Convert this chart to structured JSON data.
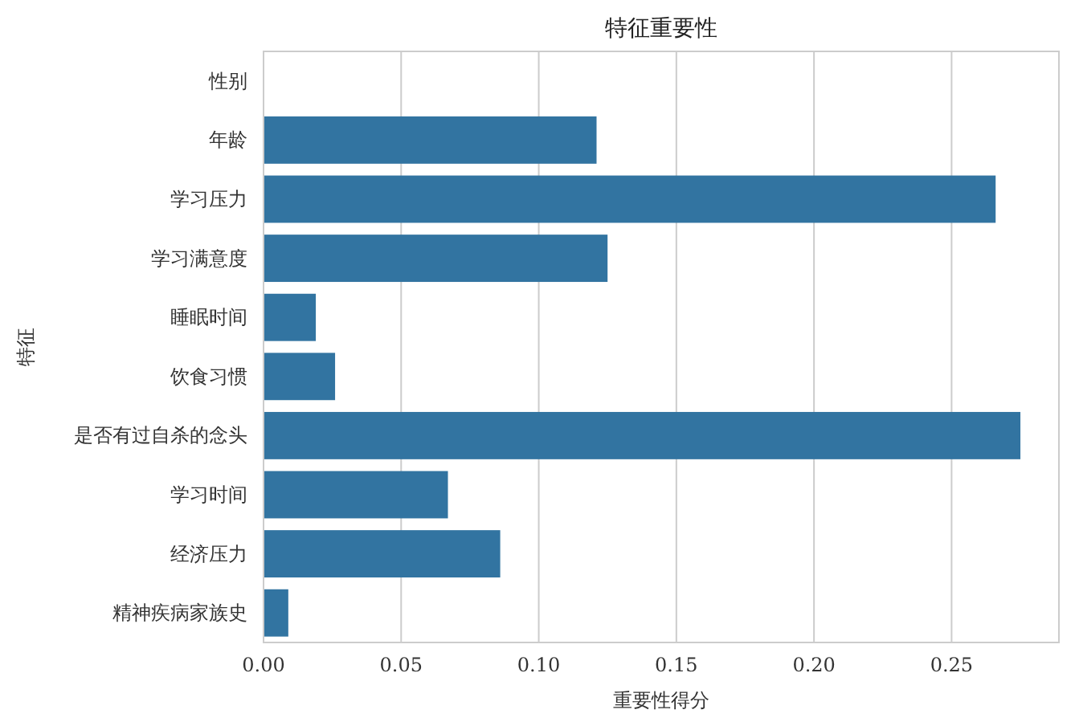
{
  "chart_data": {
    "type": "bar",
    "orientation": "horizontal",
    "title": "特征重要性",
    "xlabel": "重要性得分",
    "ylabel": "特征",
    "categories": [
      "性别",
      "年龄",
      "学习压力",
      "学习满意度",
      "睡眠时间",
      "饮食习惯",
      "是否有过自杀的念头",
      "学习时间",
      "经济压力",
      "精神疾病家族史"
    ],
    "values": [
      0,
      0.121,
      0.266,
      0.125,
      0.019,
      0.026,
      0.275,
      0.067,
      0.086,
      0.009
    ],
    "color": "#3274a1",
    "xlim": [
      0,
      0.289
    ],
    "xticks": [
      {
        "value": 0,
        "label": "0.00"
      },
      {
        "value": 0.05,
        "label": "0.05"
      },
      {
        "value": 0.1,
        "label": "0.10"
      },
      {
        "value": 0.15,
        "label": "0.15"
      },
      {
        "value": 0.2,
        "label": "0.20"
      },
      {
        "value": 0.25,
        "label": "0.25"
      }
    ],
    "grid": "x"
  }
}
